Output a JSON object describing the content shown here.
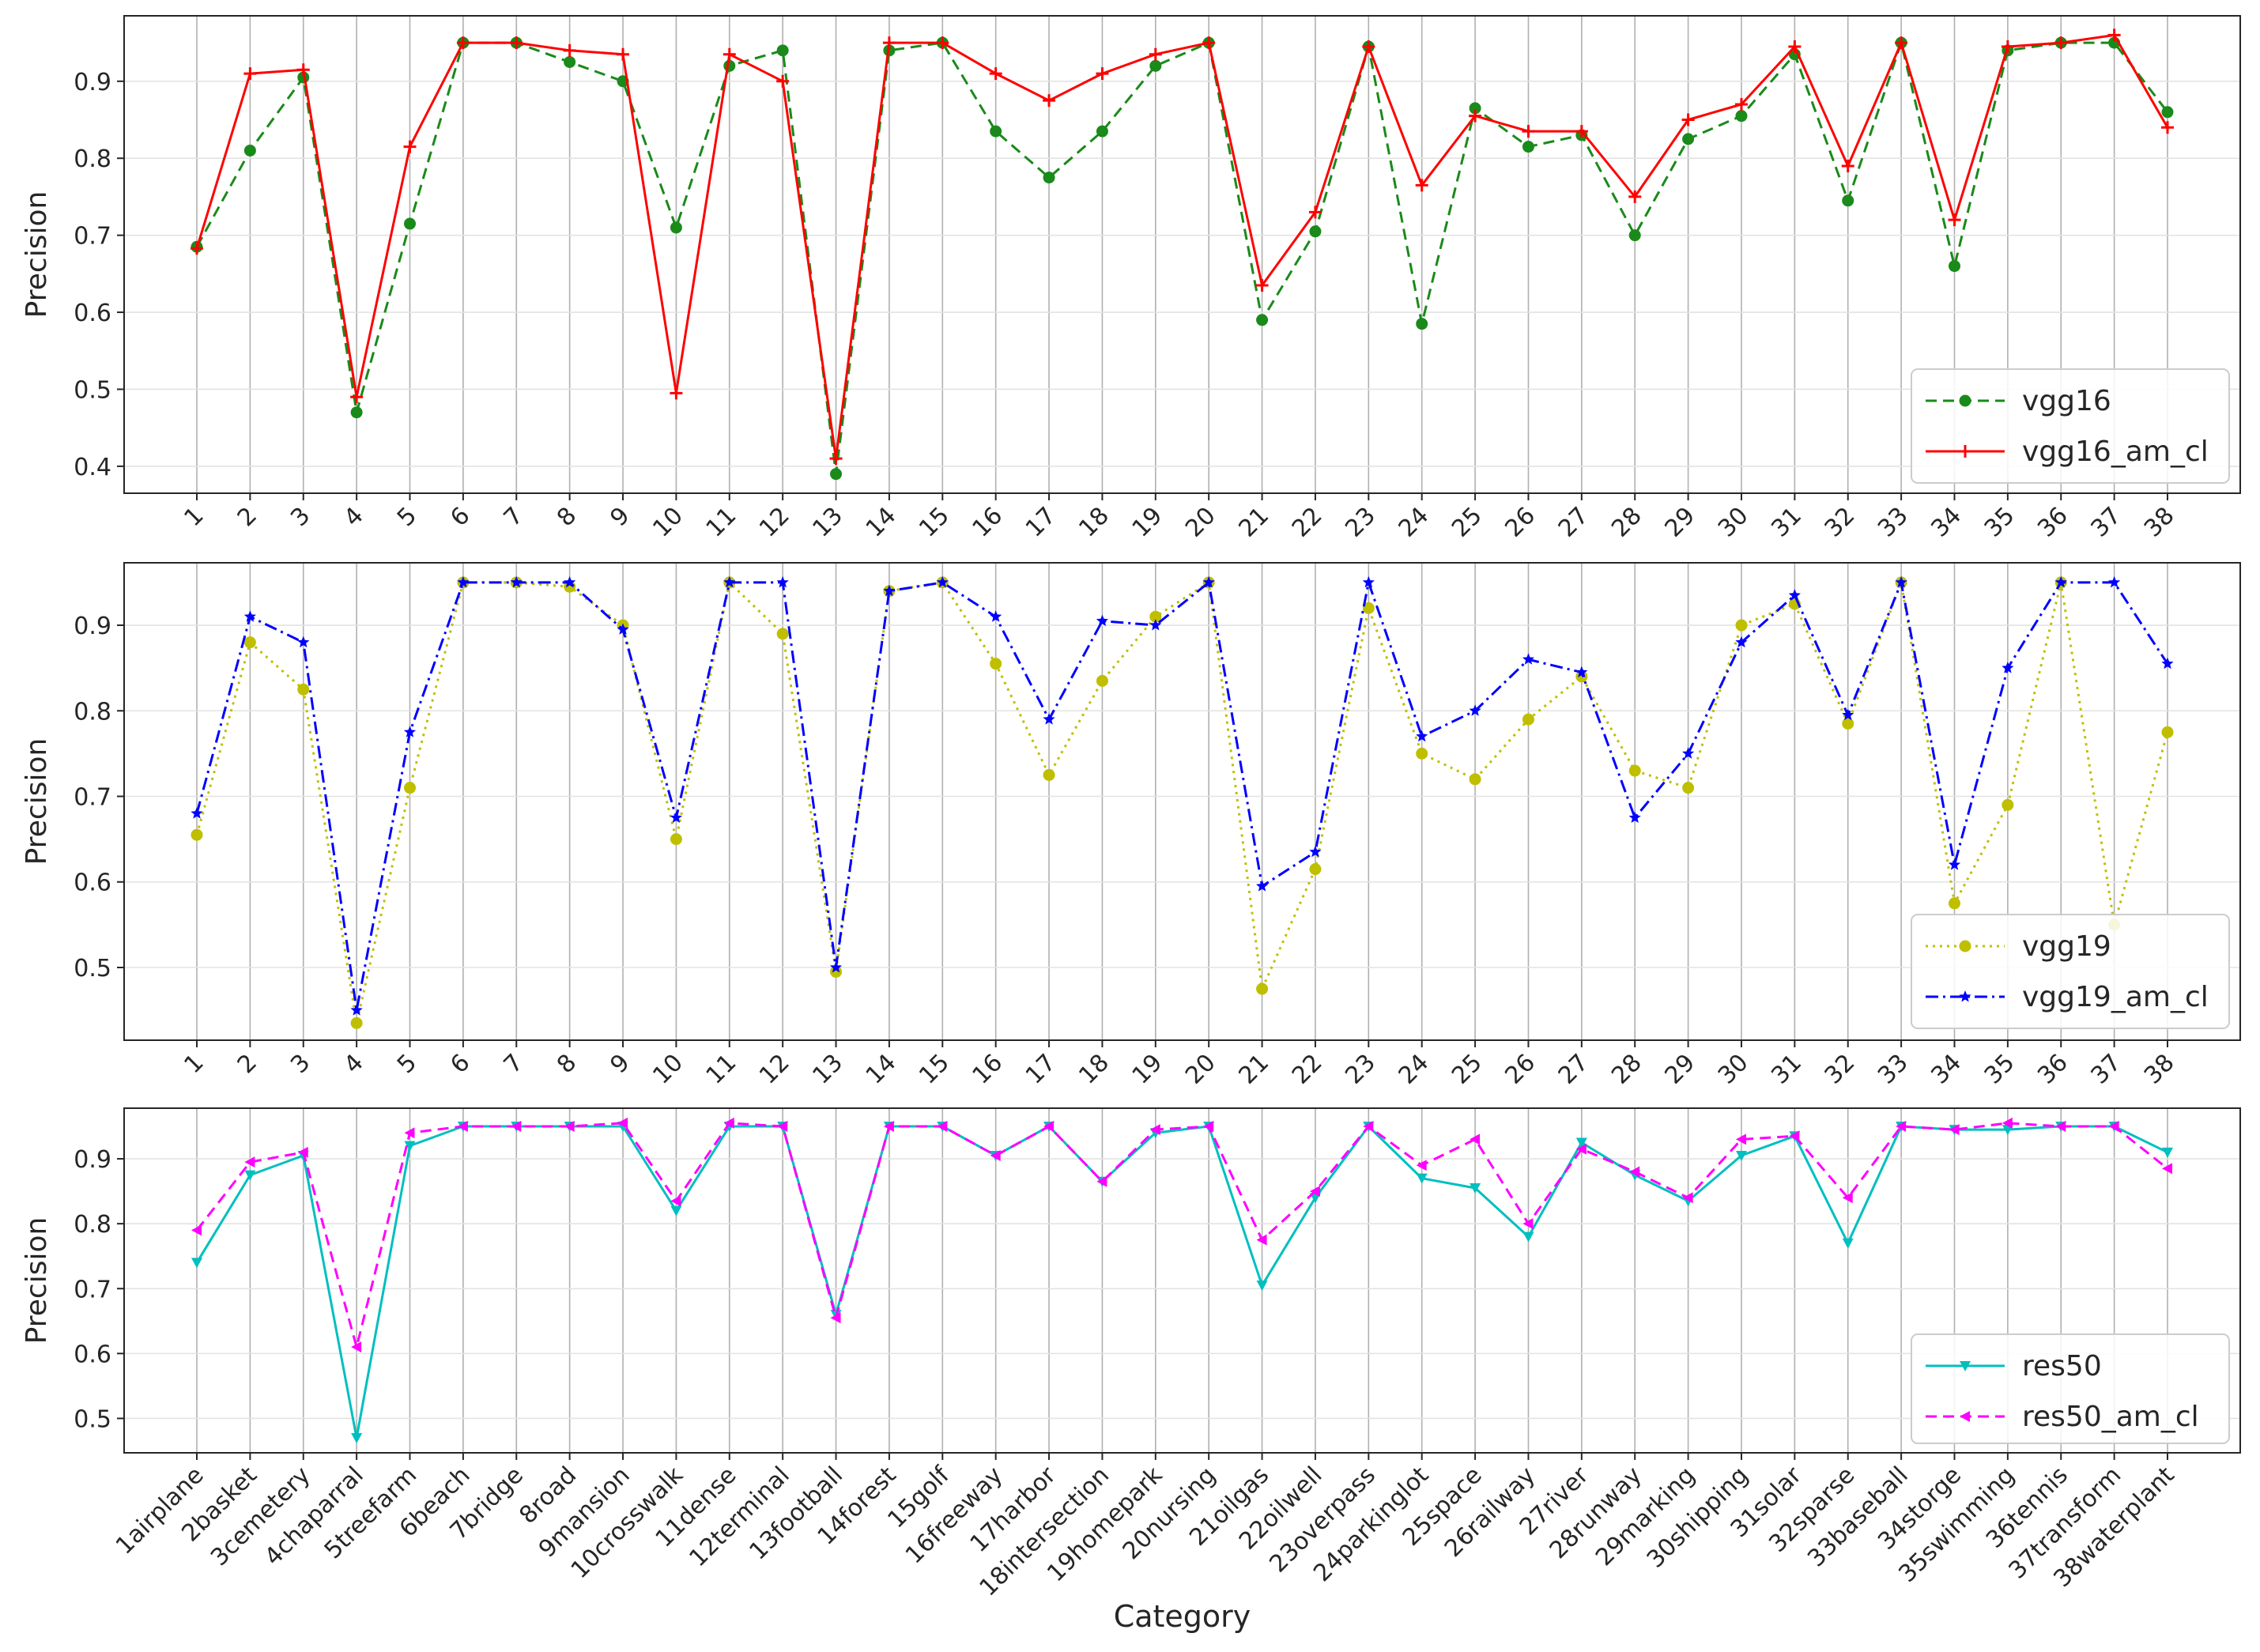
{
  "chart_data": [
    {
      "type": "line",
      "ylabel": "Precision",
      "xlabel": "",
      "grid": true,
      "legend_position": "lower-right",
      "ylim": [
        0.365,
        0.985
      ],
      "yticks": [
        0.4,
        0.5,
        0.6,
        0.7,
        0.8,
        0.9
      ],
      "ytick_labels": [
        "0.4",
        "0.5",
        "0.6",
        "0.7",
        "0.8",
        "0.9"
      ],
      "categories": [
        "1",
        "2",
        "3",
        "4",
        "5",
        "6",
        "7",
        "8",
        "9",
        "10",
        "11",
        "12",
        "13",
        "14",
        "15",
        "16",
        "17",
        "18",
        "19",
        "20",
        "21",
        "22",
        "23",
        "24",
        "25",
        "26",
        "27",
        "28",
        "29",
        "30",
        "31",
        "32",
        "33",
        "34",
        "35",
        "36",
        "37",
        "38"
      ],
      "series": [
        {
          "name": "vgg16",
          "color": "#1a8a1a",
          "linestyle": "dashed",
          "marker": "circle",
          "values": [
            0.685,
            0.81,
            0.905,
            0.47,
            0.715,
            0.95,
            0.95,
            0.925,
            0.9,
            0.71,
            0.92,
            0.94,
            0.39,
            0.94,
            0.95,
            0.835,
            0.775,
            0.835,
            0.92,
            0.95,
            0.59,
            0.705,
            0.945,
            0.585,
            0.865,
            0.815,
            0.83,
            0.7,
            0.825,
            0.855,
            0.935,
            0.745,
            0.95,
            0.66,
            0.94,
            0.95,
            0.95,
            0.86
          ]
        },
        {
          "name": "vgg16_am_cl",
          "color": "#ff0000",
          "linestyle": "solid",
          "marker": "plus",
          "values": [
            0.683,
            0.91,
            0.915,
            0.49,
            0.815,
            0.95,
            0.95,
            0.94,
            0.935,
            0.495,
            0.935,
            0.9,
            0.41,
            0.95,
            0.95,
            0.91,
            0.875,
            0.91,
            0.935,
            0.95,
            0.635,
            0.73,
            0.945,
            0.765,
            0.855,
            0.835,
            0.835,
            0.75,
            0.85,
            0.87,
            0.945,
            0.79,
            0.95,
            0.72,
            0.945,
            0.95,
            0.96,
            0.84
          ]
        }
      ]
    },
    {
      "type": "line",
      "ylabel": "Precision",
      "xlabel": "",
      "grid": true,
      "legend_position": "lower-right",
      "ylim": [
        0.415,
        0.973
      ],
      "yticks": [
        0.5,
        0.6,
        0.7,
        0.8,
        0.9
      ],
      "ytick_labels": [
        "0.5",
        "0.6",
        "0.7",
        "0.8",
        "0.9"
      ],
      "categories": [
        "1",
        "2",
        "3",
        "4",
        "5",
        "6",
        "7",
        "8",
        "9",
        "10",
        "11",
        "12",
        "13",
        "14",
        "15",
        "16",
        "17",
        "18",
        "19",
        "20",
        "21",
        "22",
        "23",
        "24",
        "25",
        "26",
        "27",
        "28",
        "29",
        "30",
        "31",
        "32",
        "33",
        "34",
        "35",
        "36",
        "37",
        "38"
      ],
      "series": [
        {
          "name": "vgg19",
          "color": "#bfbf00",
          "linestyle": "dotted",
          "marker": "circle",
          "values": [
            0.655,
            0.88,
            0.825,
            0.435,
            0.71,
            0.95,
            0.95,
            0.945,
            0.9,
            0.65,
            0.95,
            0.89,
            0.495,
            0.94,
            0.95,
            0.855,
            0.725,
            0.835,
            0.91,
            0.95,
            0.475,
            0.615,
            0.92,
            0.75,
            0.72,
            0.79,
            0.84,
            0.73,
            0.71,
            0.9,
            0.925,
            0.785,
            0.95,
            0.575,
            0.69,
            0.95,
            0.55,
            0.775
          ]
        },
        {
          "name": "vgg19_am_cl",
          "color": "#0000ff",
          "linestyle": "dashdot",
          "marker": "star",
          "values": [
            0.68,
            0.91,
            0.88,
            0.45,
            0.775,
            0.95,
            0.95,
            0.95,
            0.895,
            0.675,
            0.95,
            0.95,
            0.5,
            0.94,
            0.95,
            0.91,
            0.79,
            0.905,
            0.9,
            0.95,
            0.595,
            0.635,
            0.95,
            0.77,
            0.8,
            0.86,
            0.845,
            0.675,
            0.75,
            0.88,
            0.935,
            0.795,
            0.95,
            0.62,
            0.85,
            0.95,
            0.95,
            0.855
          ]
        }
      ]
    },
    {
      "type": "line",
      "ylabel": "Precision",
      "xlabel": "Category",
      "grid": true,
      "legend_position": "lower-right",
      "ylim": [
        0.447,
        0.978
      ],
      "yticks": [
        0.5,
        0.6,
        0.7,
        0.8,
        0.9
      ],
      "ytick_labels": [
        "0.5",
        "0.6",
        "0.7",
        "0.8",
        "0.9"
      ],
      "categories": [
        "1airplane",
        "2basket",
        "3cemetery",
        "4chaparral",
        "5treefarm",
        "6beach",
        "7bridge",
        "8road",
        "9mansion",
        "10crosswalk",
        "11dense",
        "12terminal",
        "13football",
        "14forest",
        "15golf",
        "16freeway",
        "17harbor",
        "18intersection",
        "19homepark",
        "20nursing",
        "21oilgas",
        "22oilwell",
        "23overpass",
        "24parkinglot",
        "25space",
        "26railway",
        "27river",
        "28runway",
        "29marking",
        "30shipping",
        "31solar",
        "32sparse",
        "33baseball",
        "34storge",
        "35swimming",
        "36tennis",
        "37transform",
        "38waterplant"
      ],
      "series": [
        {
          "name": "res50",
          "color": "#00bfbf",
          "linestyle": "solid",
          "marker": "triangle-down",
          "values": [
            0.74,
            0.875,
            0.905,
            0.47,
            0.92,
            0.95,
            0.95,
            0.95,
            0.95,
            0.82,
            0.95,
            0.95,
            0.66,
            0.95,
            0.95,
            0.905,
            0.95,
            0.865,
            0.94,
            0.95,
            0.705,
            0.84,
            0.95,
            0.87,
            0.855,
            0.78,
            0.925,
            0.875,
            0.835,
            0.905,
            0.935,
            0.77,
            0.95,
            0.945,
            0.945,
            0.95,
            0.95,
            0.91
          ]
        },
        {
          "name": "res50_am_cl",
          "color": "#ff00ff",
          "linestyle": "dashed",
          "marker": "triangle-left",
          "values": [
            0.79,
            0.895,
            0.91,
            0.61,
            0.94,
            0.95,
            0.95,
            0.95,
            0.955,
            0.835,
            0.955,
            0.95,
            0.655,
            0.95,
            0.95,
            0.905,
            0.95,
            0.865,
            0.945,
            0.95,
            0.775,
            0.85,
            0.95,
            0.89,
            0.93,
            0.8,
            0.915,
            0.88,
            0.84,
            0.93,
            0.935,
            0.84,
            0.95,
            0.945,
            0.955,
            0.95,
            0.95,
            0.885
          ]
        }
      ]
    }
  ]
}
